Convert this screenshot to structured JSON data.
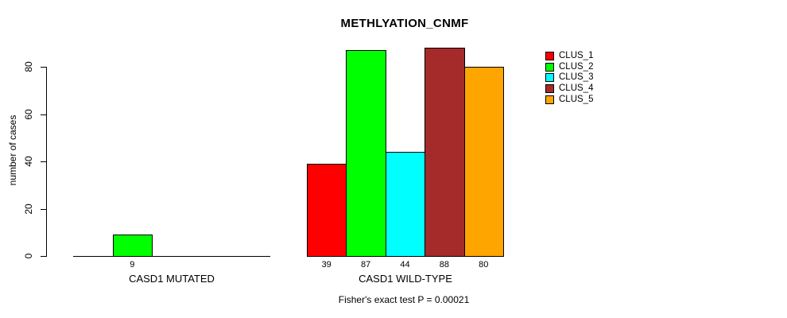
{
  "chart_data": {
    "type": "bar",
    "title": "METHLYATION_CNMF",
    "ylabel": "number of cases",
    "xlabel": "",
    "ylim": [
      0,
      80
    ],
    "yticks": [
      0,
      20,
      40,
      60,
      80
    ],
    "grid": false,
    "legend_position": "right-outside-top",
    "categories": [
      "CASD1 MUTATED",
      "CASD1 WILD-TYPE"
    ],
    "series": [
      {
        "name": "CLUS_1",
        "color": "#FF0000",
        "values": [
          0,
          39
        ]
      },
      {
        "name": "CLUS_2",
        "color": "#00FF00",
        "values": [
          9,
          87
        ]
      },
      {
        "name": "CLUS_3",
        "color": "#00FFFF",
        "values": [
          0,
          44
        ]
      },
      {
        "name": "CLUS_4",
        "color": "#A52A2A",
        "values": [
          0,
          88
        ]
      },
      {
        "name": "CLUS_5",
        "color": "#FFA500",
        "values": [
          0,
          80
        ]
      }
    ],
    "bar_value_labels": {
      "CASD1 MUTATED": [
        "9"
      ],
      "CASD1 WILD-TYPE": [
        "39",
        "87",
        "44",
        "88",
        "80"
      ]
    },
    "footnote": "Fisher's exact test P = 0.00021",
    "axis_color": "#000000",
    "background_color": "#FFFFFF"
  }
}
